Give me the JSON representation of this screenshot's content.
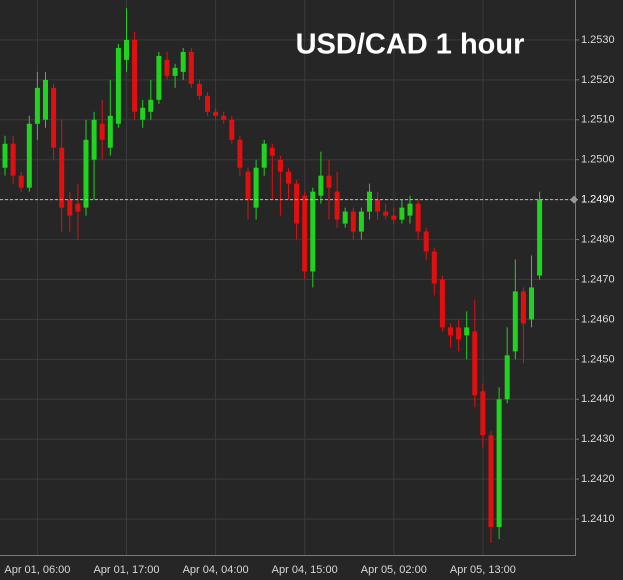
{
  "chart_data": {
    "type": "candlestick",
    "title": "USD/CAD 1 hour",
    "categories": [
      null,
      null,
      null,
      null,
      "Apr 01, 06:00",
      null,
      null,
      null,
      null,
      null,
      null,
      null,
      null,
      null,
      null,
      "Apr 01, 17:00",
      null,
      null,
      null,
      null,
      null,
      null,
      null,
      null,
      null,
      null,
      "Apr 04, 04:00",
      null,
      null,
      null,
      null,
      null,
      null,
      null,
      null,
      null,
      null,
      "Apr 04, 15:00",
      null,
      null,
      null,
      null,
      null,
      null,
      null,
      null,
      null,
      null,
      "Apr 05, 02:00",
      null,
      null,
      null,
      null,
      null,
      null,
      null,
      null,
      null,
      null,
      "Apr 05, 13:00",
      null,
      null,
      null,
      null,
      null,
      null,
      null
    ],
    "open": [
      1.2498,
      1.2504,
      1.2496,
      1.2493,
      1.2509,
      1.251,
      1.2518,
      1.2503,
      1.249,
      1.2489,
      1.2488,
      1.25,
      1.2509,
      1.2503,
      1.2509,
      1.2525,
      1.253,
      1.251,
      1.2512,
      1.2515,
      1.2525,
      1.2521,
      1.2522,
      1.2527,
      1.2519,
      1.2516,
      1.2512,
      1.2511,
      1.251,
      1.2505,
      1.2497,
      1.2488,
      1.2498,
      1.2503,
      1.25,
      1.2497,
      1.2494,
      1.2491,
      1.2472,
      1.2491,
      1.2496,
      1.2492,
      1.2484,
      1.2487,
      1.2482,
      1.2487,
      1.249,
      1.2487,
      1.2486,
      1.2485,
      1.2486,
      1.2489,
      1.2482,
      1.2477,
      1.247,
      1.2458,
      1.2458,
      1.2456,
      1.2457,
      1.2442,
      1.2431,
      1.2408,
      1.244,
      1.2452,
      1.2467,
      1.246,
      1.2471
    ],
    "high": [
      1.2506,
      1.2506,
      1.2497,
      1.2511,
      1.2522,
      1.2522,
      1.2519,
      1.251,
      1.2492,
      1.2494,
      1.251,
      1.2512,
      1.2515,
      1.252,
      1.2529,
      1.2538,
      1.2532,
      1.2515,
      1.252,
      1.2527,
      1.2527,
      1.2524,
      1.2528,
      1.2528,
      1.252,
      1.2517,
      1.2513,
      1.2512,
      1.2511,
      1.2506,
      1.2498,
      1.25,
      1.2505,
      1.2504,
      1.2501,
      1.2498,
      1.2495,
      1.2492,
      1.2493,
      1.2502,
      1.25,
      1.2497,
      1.2488,
      1.2488,
      1.2488,
      1.2494,
      1.2492,
      1.2489,
      1.2488,
      1.249,
      1.2491,
      1.249,
      1.2483,
      1.2478,
      1.2471,
      1.2459,
      1.246,
      1.2462,
      1.2465,
      1.2444,
      1.2432,
      1.2443,
      1.2458,
      1.2475,
      1.2468,
      1.2476,
      1.2492
    ],
    "low": [
      1.2496,
      1.2494,
      1.2492,
      1.2492,
      1.2505,
      1.2508,
      1.25,
      1.2482,
      1.2482,
      1.248,
      1.2486,
      1.249,
      1.25,
      1.2501,
      1.2508,
      1.2522,
      1.251,
      1.2508,
      1.251,
      1.2514,
      1.252,
      1.2518,
      1.252,
      1.2518,
      1.2515,
      1.2511,
      1.251,
      1.2509,
      1.2504,
      1.2496,
      1.2485,
      1.2485,
      1.2496,
      1.249,
      1.2486,
      1.249,
      1.248,
      1.247,
      1.2468,
      1.2489,
      1.2485,
      1.2483,
      1.2483,
      1.248,
      1.248,
      1.2485,
      1.2485,
      1.2485,
      1.2484,
      1.2484,
      1.2484,
      1.248,
      1.2475,
      1.2466,
      1.2457,
      1.2453,
      1.2452,
      1.245,
      1.2438,
      1.2428,
      1.2404,
      1.2405,
      1.2439,
      1.245,
      1.2449,
      1.2458,
      1.247
    ],
    "close": [
      1.2504,
      1.2496,
      1.2493,
      1.2509,
      1.2518,
      1.252,
      1.2503,
      1.2488,
      1.2486,
      1.2487,
      1.2505,
      1.251,
      1.2505,
      1.2511,
      1.2528,
      1.253,
      1.2512,
      1.2513,
      1.2515,
      1.2526,
      1.2521,
      1.2523,
      1.2527,
      1.2519,
      1.2516,
      1.2512,
      1.2511,
      1.251,
      1.2505,
      1.2498,
      1.249,
      1.2498,
      1.2504,
      1.2501,
      1.2497,
      1.2494,
      1.2484,
      1.2472,
      1.2492,
      1.2496,
      1.2493,
      1.2485,
      1.2487,
      1.2482,
      1.2487,
      1.2492,
      1.2487,
      1.2486,
      1.2485,
      1.2488,
      1.2489,
      1.2482,
      1.2477,
      1.2469,
      1.2458,
      1.2456,
      1.2455,
      1.2458,
      1.2441,
      1.2431,
      1.2408,
      1.244,
      1.2451,
      1.2467,
      1.2459,
      1.2468,
      1.249
    ],
    "up_color": "#1fd31f",
    "down_color": "#e01010",
    "ylim": [
      1.2401,
      1.254
    ],
    "yticks": [
      {
        "value": 1.241,
        "label": "1.2410"
      },
      {
        "value": 1.242,
        "label": "1.2420"
      },
      {
        "value": 1.243,
        "label": "1.2430"
      },
      {
        "value": 1.244,
        "label": "1.2440"
      },
      {
        "value": 1.245,
        "label": "1.2450"
      },
      {
        "value": 1.246,
        "label": "1.2460"
      },
      {
        "value": 1.247,
        "label": "1.2470"
      },
      {
        "value": 1.248,
        "label": "1.2480"
      },
      {
        "value": 1.249,
        "label": "1.2490"
      },
      {
        "value": 1.25,
        "label": "1.2500"
      },
      {
        "value": 1.251,
        "label": "1.2510"
      },
      {
        "value": 1.252,
        "label": "1.2520"
      },
      {
        "value": 1.253,
        "label": "1.2530"
      }
    ],
    "last_price": {
      "value": 1.249,
      "label": "1.2490"
    },
    "grid": true
  }
}
